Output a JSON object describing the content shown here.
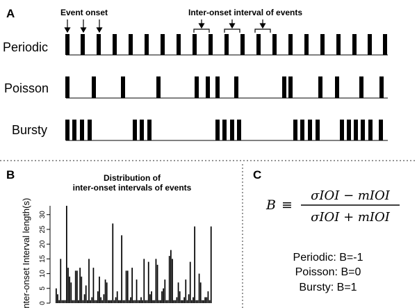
{
  "panels": {
    "a": {
      "label": "A"
    },
    "b": {
      "label": "B"
    },
    "c": {
      "label": "C"
    }
  },
  "panel_a": {
    "annotations": {
      "event_onset": "Event onset",
      "ioi": "Inter-onset interval of events"
    },
    "rows": [
      {
        "label": "Periodic",
        "events": [
          97,
          119,
          142,
          165,
          188,
          211,
          234,
          257,
          280,
          303,
          326,
          349,
          372,
          395,
          418,
          441,
          464,
          487,
          510,
          532,
          554
        ]
      },
      {
        "label": "Poisson",
        "events": [
          97,
          135,
          177,
          228,
          283,
          299,
          313,
          340,
          409,
          418,
          461,
          485,
          520,
          549
        ]
      },
      {
        "label": "Bursty",
        "events": [
          97,
          107,
          118,
          129,
          194,
          204,
          215,
          313,
          323,
          334,
          344,
          425,
          435,
          446,
          457,
          492,
          502,
          512,
          522,
          533,
          548
        ]
      }
    ]
  },
  "panel_b": {
    "title_line1": "Distribution of",
    "title_line2": "inter-onset intervals of events",
    "ylabel": "Inter-onset Interval length(s)",
    "yticks": [
      "0",
      "5",
      "10",
      "15",
      "20",
      "25",
      "30"
    ]
  },
  "chart_data": {
    "type": "bar",
    "title": "Distribution of inter-onset intervals of events",
    "ylabel": "Inter-onset Interval length(s)",
    "ylim": [
      0,
      33
    ],
    "values": [
      5,
      3,
      1,
      15,
      1,
      1,
      1,
      33,
      12,
      9,
      7,
      1,
      1,
      11,
      11,
      1,
      12,
      9,
      1,
      3,
      6,
      1,
      15,
      1,
      2,
      12,
      1,
      1,
      4,
      9,
      2,
      1,
      3,
      8,
      7,
      1,
      1,
      1,
      27,
      1,
      2,
      4,
      1,
      1,
      23,
      1,
      1,
      11,
      11,
      1,
      2,
      12,
      1,
      1,
      8,
      1,
      1,
      2,
      1,
      15,
      1,
      1,
      14,
      3,
      4,
      1,
      1,
      15,
      13,
      1,
      1,
      4,
      5,
      8,
      1,
      1,
      16,
      18,
      15,
      1,
      1,
      2,
      7,
      4,
      1,
      1,
      2,
      8,
      1,
      3,
      14,
      1,
      2,
      26,
      1,
      1,
      10,
      7,
      1,
      1,
      2,
      2,
      4,
      1,
      26
    ]
  },
  "panel_c": {
    "formula": {
      "lhs": "B",
      "equiv": "≡",
      "numerator": "σIOI − mIOI",
      "denominator": "σIOI + mIOI"
    },
    "summary": [
      "Periodic: B=-1",
      "Poisson: B=0",
      "Bursty: B=1"
    ]
  }
}
